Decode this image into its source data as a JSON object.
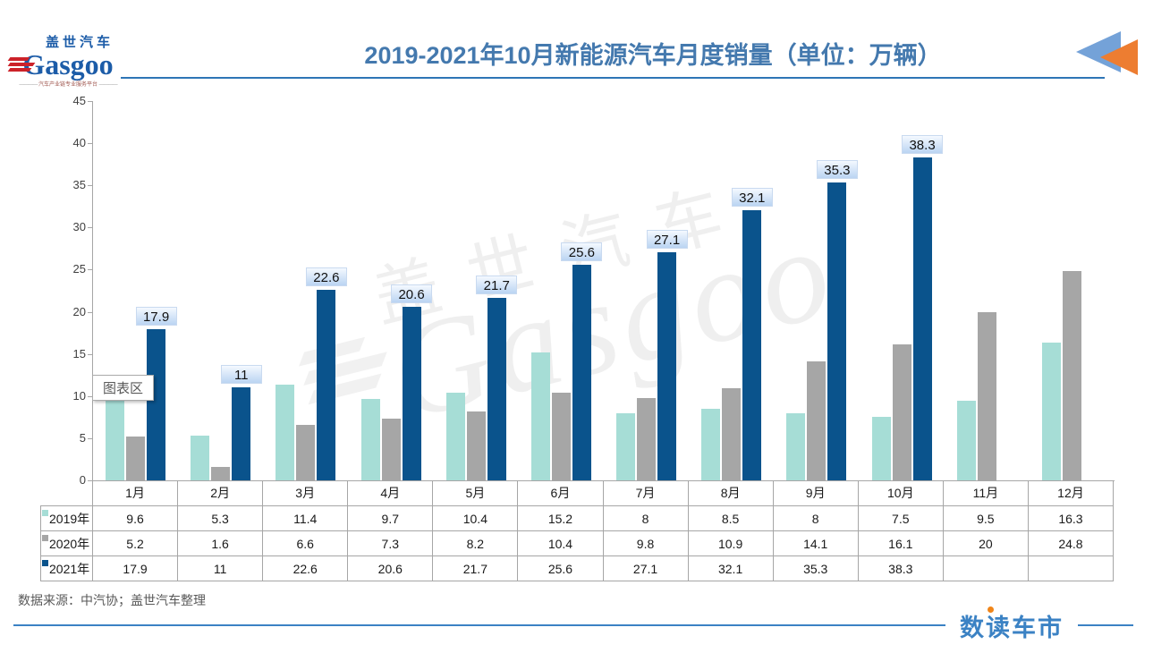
{
  "header": {
    "logo": {
      "cn": "盖世汽车",
      "en": "Gasgoo",
      "tagline": "汽车产业链专业服务平台"
    },
    "title": "2019-2021年10月新能源汽车月度销量（单位：万辆）"
  },
  "tooltip": {
    "label": "图表区"
  },
  "watermark": {
    "cn": "盖世汽车",
    "en": "Gasgoo"
  },
  "chart_data": {
    "type": "bar",
    "title": "2019-2021年10月新能源汽车月度销量（单位：万辆）",
    "categories": [
      "1月",
      "2月",
      "3月",
      "4月",
      "5月",
      "6月",
      "7月",
      "8月",
      "9月",
      "10月",
      "11月",
      "12月"
    ],
    "series": [
      {
        "name": "2019年",
        "color": "#a6ddd6",
        "values": [
          9.6,
          5.3,
          11.4,
          9.7,
          10.4,
          15.2,
          8,
          8.5,
          8,
          7.5,
          9.5,
          16.3
        ],
        "data_labels": false
      },
      {
        "name": "2020年",
        "color": "#a6a6a6",
        "values": [
          5.2,
          1.6,
          6.6,
          7.3,
          8.2,
          10.4,
          9.8,
          10.9,
          14.1,
          16.1,
          20,
          24.8
        ],
        "data_labels": false
      },
      {
        "name": "2021年",
        "color": "#0a538c",
        "values": [
          17.9,
          11,
          22.6,
          20.6,
          21.7,
          25.6,
          27.1,
          32.1,
          35.3,
          38.3,
          null,
          null
        ],
        "data_labels": true
      }
    ],
    "xlabel": "",
    "ylabel": "",
    "ylim": [
      0,
      45
    ],
    "ytick_step": 5,
    "grid": false,
    "legend_position": "data-table-left",
    "data_table_shown": true
  },
  "footer": {
    "source": "数据来源：中汽协；盖世汽车整理",
    "brand": "数读车市"
  },
  "colors": {
    "title_blue": "#4479ae",
    "rule_blue": "#2e75b6",
    "brand_blue": "#3b82c4",
    "brand_orange": "#f08519",
    "axis_gray": "#a6a6a6",
    "label_bg_blue": "#bad4f2"
  }
}
